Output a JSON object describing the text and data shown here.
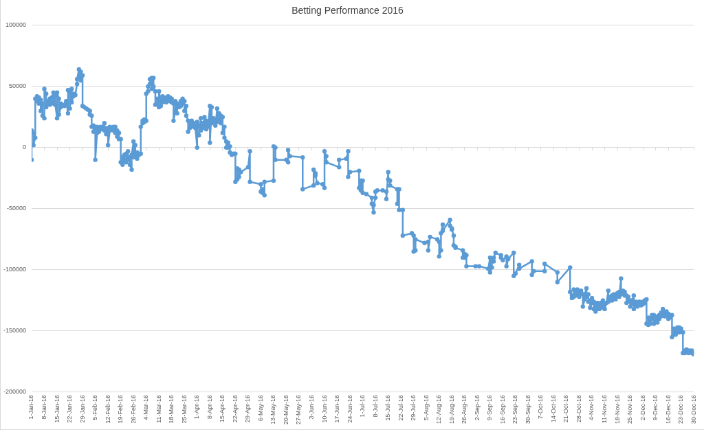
{
  "chart_data": {
    "type": "line",
    "title": "Betting Performance 2016",
    "color": "#5b9bd5",
    "marker": "circle",
    "grid": "y",
    "xlim": [
      "2016-01-01",
      "2016-12-30"
    ],
    "ylim": [
      -200000,
      100000
    ],
    "yticks": [
      -200000,
      -150000,
      -100000,
      -50000,
      0,
      50000,
      100000
    ],
    "xticks": [
      {
        "value": "2016-01-01",
        "label": "1-Jan-16"
      },
      {
        "value": "2016-01-08",
        "label": "8-Jan-16"
      },
      {
        "value": "2016-01-15",
        "label": "15-Jan-16"
      },
      {
        "value": "2016-01-22",
        "label": "22-Jan-16"
      },
      {
        "value": "2016-01-29",
        "label": "29-Jan-16"
      },
      {
        "value": "2016-02-05",
        "label": "5-Feb-16"
      },
      {
        "value": "2016-02-12",
        "label": "12-Feb-16"
      },
      {
        "value": "2016-02-19",
        "label": "19-Feb-16"
      },
      {
        "value": "2016-02-26",
        "label": "26-Feb-16"
      },
      {
        "value": "2016-03-04",
        "label": "4-Mar-16"
      },
      {
        "value": "2016-03-11",
        "label": "11-Mar-16"
      },
      {
        "value": "2016-03-18",
        "label": "18-Mar-16"
      },
      {
        "value": "2016-03-25",
        "label": "25-Mar-16"
      },
      {
        "value": "2016-04-01",
        "label": "1-Apr-16"
      },
      {
        "value": "2016-04-08",
        "label": "8-Apr-16"
      },
      {
        "value": "2016-04-15",
        "label": "15-Apr-16"
      },
      {
        "value": "2016-04-22",
        "label": "22-Apr-16"
      },
      {
        "value": "2016-04-29",
        "label": "29-Apr-16"
      },
      {
        "value": "2016-05-06",
        "label": "6-May-16"
      },
      {
        "value": "2016-05-13",
        "label": "13-May-16"
      },
      {
        "value": "2016-05-20",
        "label": "20-May-16"
      },
      {
        "value": "2016-05-27",
        "label": "27-May-16"
      },
      {
        "value": "2016-06-03",
        "label": "3-Jun-16"
      },
      {
        "value": "2016-06-10",
        "label": "10-Jun-16"
      },
      {
        "value": "2016-06-17",
        "label": "17-Jun-16"
      },
      {
        "value": "2016-06-24",
        "label": "24-Jun-16"
      },
      {
        "value": "2016-07-01",
        "label": "1-Jul-16"
      },
      {
        "value": "2016-07-08",
        "label": "8-Jul-16"
      },
      {
        "value": "2016-07-15",
        "label": "15-Jul-16"
      },
      {
        "value": "2016-07-22",
        "label": "22-Jul-16"
      },
      {
        "value": "2016-07-29",
        "label": "29-Jul-16"
      },
      {
        "value": "2016-08-05",
        "label": "5-Aug-16"
      },
      {
        "value": "2016-08-12",
        "label": "12-Aug-16"
      },
      {
        "value": "2016-08-19",
        "label": "19-Aug-16"
      },
      {
        "value": "2016-08-26",
        "label": "26-Aug-16"
      },
      {
        "value": "2016-09-02",
        "label": "2-Sep-16"
      },
      {
        "value": "2016-09-09",
        "label": "9-Sep-16"
      },
      {
        "value": "2016-09-16",
        "label": "16-Sep-16"
      },
      {
        "value": "2016-09-23",
        "label": "23-Sep-16"
      },
      {
        "value": "2016-09-30",
        "label": "30-Sep-16"
      },
      {
        "value": "2016-10-07",
        "label": "7-Oct-16"
      },
      {
        "value": "2016-10-14",
        "label": "14-Oct-16"
      },
      {
        "value": "2016-10-21",
        "label": "21-Oct-16"
      },
      {
        "value": "2016-10-28",
        "label": "28-Oct-16"
      },
      {
        "value": "2016-11-04",
        "label": "4-Nov-16"
      },
      {
        "value": "2016-11-11",
        "label": "11-Nov-16"
      },
      {
        "value": "2016-11-18",
        "label": "18-Nov-16"
      },
      {
        "value": "2016-11-25",
        "label": "25-Nov-16"
      },
      {
        "value": "2016-12-02",
        "label": "2-Dec-16"
      },
      {
        "value": "2016-12-09",
        "label": "9-Dec-16"
      },
      {
        "value": "2016-12-16",
        "label": "16-Dec-16"
      },
      {
        "value": "2016-12-23",
        "label": "23-Dec-16"
      },
      {
        "value": "2016-12-30",
        "label": "30-Dec-16"
      }
    ],
    "x": [
      "2016-01-01",
      "2016-01-01",
      "2016-01-02",
      "2016-01-02",
      "2016-01-03",
      "2016-01-03",
      "2016-01-04",
      "2016-01-04",
      "2016-01-05",
      "2016-01-05",
      "2016-01-06",
      "2016-01-06",
      "2016-01-07",
      "2016-01-07",
      "2016-01-08",
      "2016-01-08",
      "2016-01-09",
      "2016-01-09",
      "2016-01-10",
      "2016-01-10",
      "2016-01-11",
      "2016-01-11",
      "2016-01-12",
      "2016-01-12",
      "2016-01-13",
      "2016-01-13",
      "2016-01-14",
      "2016-01-14",
      "2016-01-15",
      "2016-01-15",
      "2016-01-16",
      "2016-01-16",
      "2016-01-17",
      "2016-01-17",
      "2016-01-18",
      "2016-01-19",
      "2016-01-20",
      "2016-01-20",
      "2016-01-21",
      "2016-01-21",
      "2016-01-22",
      "2016-01-22",
      "2016-01-23",
      "2016-01-23",
      "2016-01-24",
      "2016-01-24",
      "2016-01-25",
      "2016-01-26",
      "2016-01-26",
      "2016-01-27",
      "2016-01-27",
      "2016-01-28",
      "2016-01-28",
      "2016-01-29",
      "2016-01-29",
      "2016-01-30",
      "2016-01-31",
      "2016-02-01",
      "2016-02-02",
      "2016-02-02",
      "2016-02-03",
      "2016-02-03",
      "2016-02-04",
      "2016-02-04",
      "2016-02-05",
      "2016-02-05",
      "2016-02-06",
      "2016-02-06",
      "2016-02-07",
      "2016-02-07",
      "2016-02-08",
      "2016-02-08",
      "2016-02-09",
      "2016-02-10",
      "2016-02-10",
      "2016-02-11",
      "2016-02-11",
      "2016-02-12",
      "2016-02-12",
      "2016-02-13",
      "2016-02-13",
      "2016-02-14",
      "2016-02-15",
      "2016-02-15",
      "2016-02-16",
      "2016-02-16",
      "2016-02-17",
      "2016-02-17",
      "2016-02-18",
      "2016-02-18",
      "2016-02-19",
      "2016-02-19",
      "2016-02-20",
      "2016-02-20",
      "2016-02-21",
      "2016-02-21",
      "2016-02-22",
      "2016-02-22",
      "2016-02-23",
      "2016-02-23",
      "2016-02-24",
      "2016-02-24",
      "2016-02-25",
      "2016-02-25",
      "2016-02-26",
      "2016-02-26",
      "2016-02-27",
      "2016-02-27",
      "2016-02-28",
      "2016-02-28",
      "2016-02-29",
      "2016-03-01",
      "2016-03-01",
      "2016-03-02",
      "2016-03-02",
      "2016-03-03",
      "2016-03-03",
      "2016-03-04",
      "2016-03-04",
      "2016-03-05",
      "2016-03-05",
      "2016-03-06",
      "2016-03-06",
      "2016-03-07",
      "2016-03-07",
      "2016-03-08",
      "2016-03-08",
      "2016-03-09",
      "2016-03-09",
      "2016-03-10",
      "2016-03-10",
      "2016-03-11",
      "2016-03-11",
      "2016-03-12",
      "2016-03-12",
      "2016-03-13",
      "2016-03-13",
      "2016-03-14",
      "2016-03-14",
      "2016-03-15",
      "2016-03-15",
      "2016-03-16",
      "2016-03-16",
      "2016-03-17",
      "2016-03-17",
      "2016-03-18",
      "2016-03-18",
      "2016-03-19",
      "2016-03-19",
      "2016-03-20",
      "2016-03-20",
      "2016-03-21",
      "2016-03-21",
      "2016-03-22",
      "2016-03-22",
      "2016-03-23",
      "2016-03-23",
      "2016-03-24",
      "2016-03-24",
      "2016-03-25",
      "2016-03-25",
      "2016-03-26",
      "2016-03-26",
      "2016-03-27",
      "2016-03-27",
      "2016-03-28",
      "2016-03-28",
      "2016-03-29",
      "2016-03-29",
      "2016-03-30",
      "2016-03-30",
      "2016-03-31",
      "2016-03-31",
      "2016-04-01",
      "2016-04-01",
      "2016-04-02",
      "2016-04-02",
      "2016-04-03",
      "2016-04-03",
      "2016-04-04",
      "2016-04-04",
      "2016-04-05",
      "2016-04-05",
      "2016-04-06",
      "2016-04-06",
      "2016-04-07",
      "2016-04-07",
      "2016-04-08",
      "2016-04-08",
      "2016-04-09",
      "2016-04-09",
      "2016-04-10",
      "2016-04-10",
      "2016-04-11",
      "2016-04-11",
      "2016-04-12",
      "2016-04-12",
      "2016-04-13",
      "2016-04-13",
      "2016-04-14",
      "2016-04-14",
      "2016-04-15",
      "2016-04-15",
      "2016-04-16",
      "2016-04-16",
      "2016-04-17",
      "2016-04-17",
      "2016-04-18",
      "2016-04-18",
      "2016-04-19",
      "2016-04-19",
      "2016-04-20",
      "2016-04-21",
      "2016-04-22",
      "2016-04-22",
      "2016-04-23",
      "2016-04-23",
      "2016-04-24",
      "2016-04-24",
      "2016-04-25",
      "2016-04-29",
      "2016-04-30",
      "2016-04-30",
      "2016-05-06",
      "2016-05-06",
      "2016-05-07",
      "2016-05-07",
      "2016-05-08",
      "2016-05-08",
      "2016-05-13",
      "2016-05-13",
      "2016-05-14",
      "2016-05-14",
      "2016-05-20",
      "2016-05-21",
      "2016-05-21",
      "2016-05-22",
      "2016-05-29",
      "2016-05-29",
      "2016-06-04",
      "2016-06-04",
      "2016-06-05",
      "2016-06-05",
      "2016-06-06",
      "2016-06-09",
      "2016-06-10",
      "2016-06-10",
      "2016-06-11",
      "2016-06-11",
      "2016-06-18",
      "2016-06-18",
      "2016-06-22",
      "2016-06-23",
      "2016-06-23",
      "2016-06-24",
      "2016-06-29",
      "2016-06-29",
      "2016-06-30",
      "2016-06-30",
      "2016-07-01",
      "2016-07-01",
      "2016-07-03",
      "2016-07-06",
      "2016-07-06",
      "2016-07-07",
      "2016-07-07",
      "2016-07-08",
      "2016-07-08",
      "2016-07-09",
      "2016-07-12",
      "2016-07-14",
      "2016-07-14",
      "2016-07-15",
      "2016-07-15",
      "2016-07-16",
      "2016-07-16",
      "2016-07-20",
      "2016-07-20",
      "2016-07-21",
      "2016-07-21",
      "2016-07-23",
      "2016-07-23",
      "2016-07-28",
      "2016-07-29",
      "2016-07-29",
      "2016-07-30",
      "2016-07-30",
      "2016-08-04",
      "2016-08-06",
      "2016-08-06",
      "2016-08-07",
      "2016-08-11",
      "2016-08-12",
      "2016-08-12",
      "2016-08-13",
      "2016-08-13",
      "2016-08-14",
      "2016-08-14",
      "2016-08-18",
      "2016-08-18",
      "2016-08-19",
      "2016-08-19",
      "2016-08-20",
      "2016-08-20",
      "2016-08-21",
      "2016-08-21",
      "2016-08-25",
      "2016-08-25",
      "2016-08-26",
      "2016-08-26",
      "2016-08-27",
      "2016-08-27",
      "2016-09-01",
      "2016-09-03",
      "2016-09-08",
      "2016-09-09",
      "2016-09-09",
      "2016-09-10",
      "2016-09-10",
      "2016-09-11",
      "2016-09-11",
      "2016-09-12",
      "2016-09-15",
      "2016-09-15",
      "2016-09-16",
      "2016-09-18",
      "2016-09-18",
      "2016-09-19",
      "2016-09-22",
      "2016-09-22",
      "2016-09-23",
      "2016-09-25",
      "2016-09-25",
      "2016-10-02",
      "2016-10-02",
      "2016-10-03",
      "2016-10-09",
      "2016-10-09",
      "2016-10-16",
      "2016-10-16",
      "2016-10-23",
      "2016-10-23",
      "2016-10-24",
      "2016-10-24",
      "2016-10-25",
      "2016-10-25",
      "2016-10-26",
      "2016-10-26",
      "2016-10-27",
      "2016-10-27",
      "2016-10-28",
      "2016-10-28",
      "2016-10-29",
      "2016-10-29",
      "2016-10-30",
      "2016-10-30",
      "2016-10-31",
      "2016-10-31",
      "2016-11-01",
      "2016-11-01",
      "2016-11-02",
      "2016-11-02",
      "2016-11-03",
      "2016-11-03",
      "2016-11-04",
      "2016-11-04",
      "2016-11-05",
      "2016-11-05",
      "2016-11-06",
      "2016-11-06",
      "2016-11-07",
      "2016-11-07",
      "2016-11-08",
      "2016-11-08",
      "2016-11-09",
      "2016-11-09",
      "2016-11-10",
      "2016-11-10",
      "2016-11-11",
      "2016-11-11",
      "2016-11-12",
      "2016-11-13",
      "2016-11-13",
      "2016-11-14",
      "2016-11-14",
      "2016-11-15",
      "2016-11-15",
      "2016-11-16",
      "2016-11-16",
      "2016-11-17",
      "2016-11-17",
      "2016-11-18",
      "2016-11-18",
      "2016-11-19",
      "2016-11-19",
      "2016-11-20",
      "2016-11-20",
      "2016-11-21",
      "2016-11-21",
      "2016-11-22",
      "2016-11-22",
      "2016-11-23",
      "2016-11-23",
      "2016-11-24",
      "2016-11-24",
      "2016-11-25",
      "2016-11-25",
      "2016-11-26",
      "2016-11-26",
      "2016-11-27",
      "2016-11-27",
      "2016-11-28",
      "2016-11-28",
      "2016-11-29",
      "2016-11-29",
      "2016-11-30",
      "2016-11-30",
      "2016-12-01",
      "2016-12-01",
      "2016-12-02",
      "2016-12-02",
      "2016-12-03",
      "2016-12-03",
      "2016-12-04",
      "2016-12-04",
      "2016-12-05",
      "2016-12-05",
      "2016-12-06",
      "2016-12-06",
      "2016-12-07",
      "2016-12-07",
      "2016-12-08",
      "2016-12-08",
      "2016-12-09",
      "2016-12-09",
      "2016-12-10",
      "2016-12-10",
      "2016-12-11",
      "2016-12-11",
      "2016-12-12",
      "2016-12-12",
      "2016-12-13",
      "2016-12-13",
      "2016-12-14",
      "2016-12-14",
      "2016-12-15",
      "2016-12-15",
      "2016-12-16",
      "2016-12-16",
      "2016-12-17",
      "2016-12-17",
      "2016-12-18",
      "2016-12-18",
      "2016-12-19",
      "2016-12-19",
      "2016-12-20",
      "2016-12-20",
      "2016-12-21",
      "2016-12-21",
      "2016-12-22",
      "2016-12-22",
      "2016-12-23",
      "2016-12-23",
      "2016-12-24",
      "2016-12-24",
      "2016-12-25",
      "2016-12-25",
      "2016-12-26",
      "2016-12-26",
      "2016-12-27",
      "2016-12-27",
      "2016-12-28",
      "2016-12-28",
      "2016-12-29",
      "2016-12-29",
      "2016-12-30",
      "2016-12-30"
    ],
    "values": [
      -10000,
      14000,
      12000,
      2000,
      8000,
      40000,
      42000,
      38000,
      41000,
      36000,
      39000,
      30000,
      36000,
      26000,
      24000,
      48000,
      44000,
      33000,
      36000,
      38000,
      40000,
      35000,
      37000,
      41000,
      45000,
      36000,
      43000,
      35000,
      24000,
      45000,
      40000,
      27000,
      33000,
      36000,
      35000,
      34000,
      36000,
      38000,
      28000,
      47000,
      46000,
      32000,
      48000,
      37000,
      42000,
      44000,
      43000,
      52000,
      56000,
      64000,
      57000,
      62000,
      55000,
      59000,
      34000,
      33000,
      32000,
      31000,
      30000,
      27000,
      26000,
      17000,
      18000,
      13000,
      16000,
      -10000,
      12000,
      17000,
      16000,
      13000,
      15000,
      17000,
      17000,
      20000,
      14000,
      16000,
      11000,
      15000,
      2000,
      14000,
      17000,
      15000,
      14000,
      17000,
      17000,
      12000,
      14000,
      9000,
      12000,
      7000,
      7000,
      -12000,
      -8000,
      -14000,
      -10000,
      -6000,
      -5000,
      -12000,
      -3000,
      -10000,
      -8000,
      -14000,
      -18000,
      -6000,
      5000,
      -8000,
      2000,
      -6000,
      -4000,
      -9000,
      -6000,
      -5000,
      17000,
      20000,
      22000,
      21000,
      23000,
      22000,
      44000,
      46000,
      50000,
      52000,
      56000,
      57000,
      48000,
      57000,
      50000,
      46000,
      35000,
      36000,
      40000,
      33000,
      46000,
      38000,
      34000,
      42000,
      37000,
      40000,
      38000,
      41000,
      37000,
      39000,
      42000,
      41000,
      38000,
      40000,
      37000,
      36000,
      22000,
      30000,
      38000,
      28000,
      36000,
      35000,
      33000,
      38000,
      34000,
      40000,
      36000,
      38000,
      30000,
      34000,
      26000,
      22000,
      13000,
      16000,
      21000,
      18000,
      22000,
      20000,
      17000,
      19000,
      16000,
      0,
      21000,
      18000,
      10000,
      24000,
      14000,
      20000,
      16000,
      25000,
      17000,
      22000,
      15000,
      20000,
      17000,
      34000,
      4000,
      33000,
      20000,
      21000,
      24000,
      22000,
      18000,
      32000,
      21000,
      28000,
      22000,
      26000,
      20000,
      25000,
      12000,
      17000,
      8000,
      5000,
      0,
      4000,
      0,
      1000,
      -4000,
      -6000,
      -5000,
      -5000,
      -28000,
      -26000,
      -17000,
      -18000,
      -24000,
      -20000,
      -16000,
      -3000,
      -28000,
      -30000,
      -36000,
      -34000,
      -37000,
      -39000,
      -28000,
      -27000,
      1000,
      0,
      -10000,
      -10000,
      -12000,
      -2000,
      -7000,
      -8000,
      -34000,
      -31000,
      -18000,
      -21000,
      -23000,
      -29000,
      -30000,
      -33000,
      -3000,
      -7000,
      -12000,
      -16000,
      -10000,
      -9000,
      -3000,
      -24000,
      -20000,
      -19000,
      -33000,
      -27000,
      -35000,
      -27000,
      -37000,
      -38000,
      -41000,
      -46000,
      -53000,
      -47000,
      -41000,
      -36000,
      -35000,
      -35000,
      -36000,
      -42000,
      -20000,
      -26000,
      -27000,
      -31000,
      -34000,
      -46000,
      -34000,
      -51000,
      -51000,
      -72000,
      -70000,
      -72000,
      -85000,
      -84000,
      -75000,
      -78000,
      -77000,
      -84000,
      -73000,
      -75000,
      -77000,
      -89000,
      -84000,
      -70000,
      -63000,
      -68000,
      -59000,
      -64000,
      -66000,
      -67000,
      -72000,
      -80000,
      -81000,
      -82000,
      -84000,
      -90000,
      -87000,
      -90000,
      -88000,
      -97000,
      -97000,
      -97000,
      -99000,
      -90000,
      -102000,
      -98000,
      -93000,
      -93000,
      -90000,
      -86000,
      -88000,
      -90000,
      -92000,
      -89000,
      -97000,
      -91000,
      -86000,
      -105000,
      -103000,
      -96000,
      -99000,
      -93000,
      -104000,
      -101000,
      -101000,
      -95000,
      -102000,
      -110000,
      -98000,
      -118000,
      -121000,
      -123000,
      -122000,
      -116000,
      -118000,
      -121000,
      -116000,
      -120000,
      -118000,
      -122000,
      -119000,
      -117000,
      -120000,
      -130000,
      -124000,
      -120000,
      -115000,
      -122000,
      -120000,
      -126000,
      -125000,
      -131000,
      -127000,
      -123000,
      -126000,
      -132000,
      -129000,
      -134000,
      -130000,
      -127000,
      -128000,
      -132000,
      -131000,
      -127000,
      -129000,
      -125000,
      -128000,
      -132000,
      -127000,
      -117000,
      -126000,
      -124000,
      -122000,
      -121000,
      -125000,
      -123000,
      -120000,
      -122000,
      -124000,
      -121000,
      -119000,
      -118000,
      -122000,
      -107000,
      -120000,
      -117000,
      -119000,
      -118000,
      -121000,
      -121000,
      -127000,
      -122000,
      -126000,
      -125000,
      -130000,
      -128000,
      -125000,
      -121000,
      -132000,
      -129000,
      -126000,
      -130000,
      -127000,
      -128000,
      -126000,
      -127000,
      -129000,
      -126000,
      -128000,
      -127000,
      -125000,
      -124000,
      -144000,
      -145000,
      -139000,
      -141000,
      -144000,
      -140000,
      -137000,
      -137000,
      -144000,
      -142000,
      -138000,
      -139000,
      -143000,
      -137000,
      -140000,
      -138000,
      -135000,
      -132000,
      -136000,
      -135000,
      -138000,
      -137000,
      -134000,
      -136000,
      -140000,
      -139000,
      -137000,
      -137000,
      -155000,
      -152000,
      -148000,
      -150000,
      -153000,
      -151000,
      -147000,
      -147000,
      -151000,
      -150000,
      -148000,
      -151000,
      -168000,
      -168000,
      -166000,
      -167000,
      -165000,
      -166000,
      -168000,
      -167000,
      -166000,
      -166000,
      -168000,
      -167000,
      -169000
    ]
  }
}
